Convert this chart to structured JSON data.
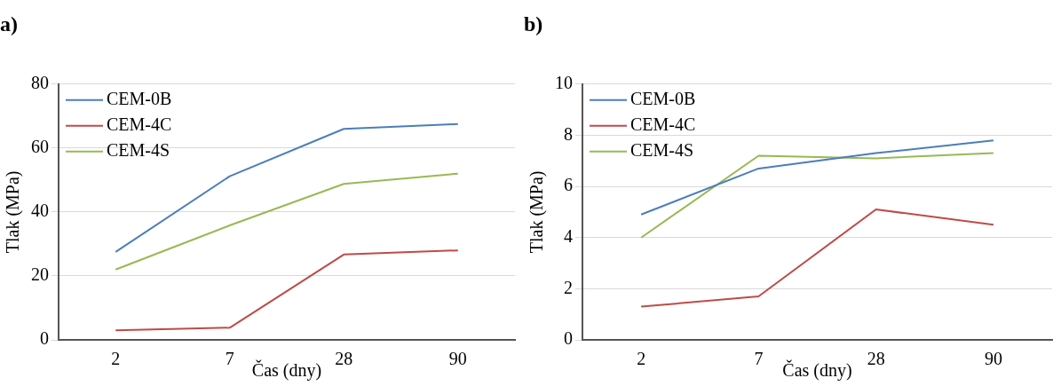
{
  "chart_data": [
    {
      "type": "line",
      "title": "a)",
      "xlabel": "Čas (dny)",
      "ylabel": "Tlak (MPa)",
      "categories": [
        "2",
        "7",
        "28",
        "90"
      ],
      "ylim": [
        0,
        80
      ],
      "yticks": [
        0,
        20,
        40,
        60,
        80
      ],
      "grid": "y",
      "legend": "top left",
      "marker": "none",
      "line_style": "solid",
      "series": [
        {
          "name": "CEM-0B",
          "color": "#4a7ebb",
          "values": [
            27.5,
            51.2,
            66,
            67.5
          ]
        },
        {
          "name": "CEM-4C",
          "color": "#be4b48",
          "values": [
            3,
            3.8,
            26.7,
            28
          ]
        },
        {
          "name": "CEM-4S",
          "color": "#98b954",
          "values": [
            22,
            35.8,
            48.8,
            52
          ]
        }
      ]
    },
    {
      "type": "line",
      "title": "b)",
      "xlabel": "Čas (dny)",
      "ylabel": "Tlak (MPa)",
      "categories": [
        "2",
        "7",
        "28",
        "90"
      ],
      "ylim": [
        0,
        10
      ],
      "yticks": [
        0,
        2,
        4,
        6,
        8,
        10
      ],
      "grid": "y",
      "legend": "top left",
      "marker": "none",
      "line_style": "solid",
      "series": [
        {
          "name": "CEM-0B",
          "color": "#4a7ebb",
          "values": [
            4.9,
            6.7,
            7.3,
            7.8
          ]
        },
        {
          "name": "CEM-4C",
          "color": "#be4b48",
          "values": [
            1.3,
            1.7,
            5.1,
            4.5
          ]
        },
        {
          "name": "CEM-4S",
          "color": "#98b954",
          "values": [
            4.0,
            7.2,
            7.1,
            7.3
          ]
        }
      ]
    }
  ]
}
